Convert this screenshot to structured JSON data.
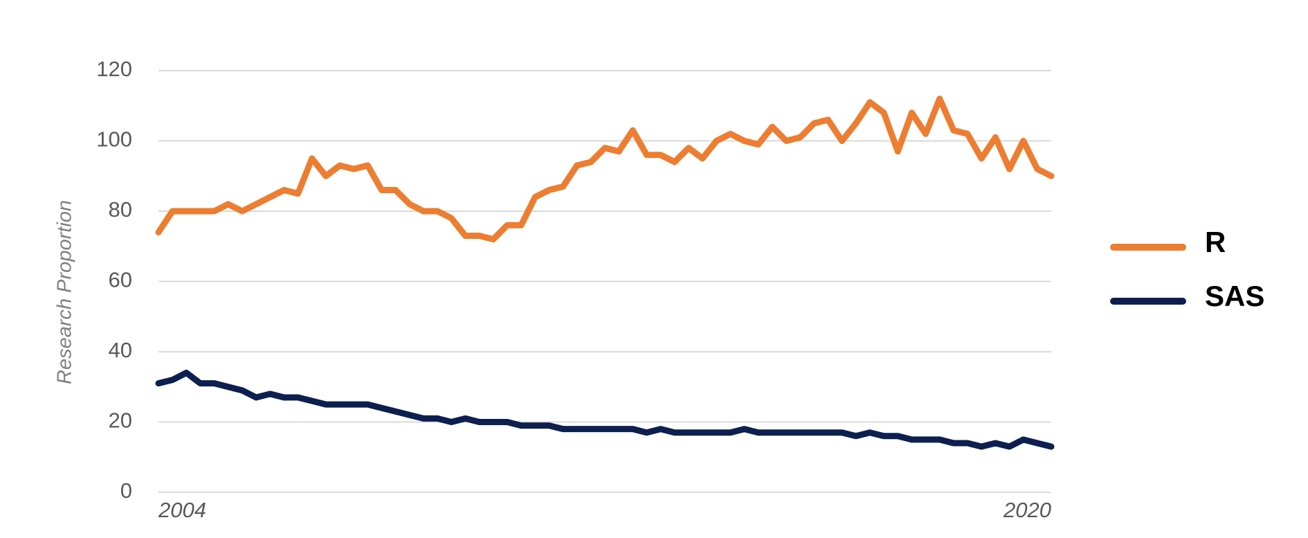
{
  "chart_data": {
    "type": "line",
    "y_label": "Research Proportion",
    "x": [
      2004,
      2004.25,
      2004.5,
      2004.75,
      2005,
      2005.25,
      2005.5,
      2005.75,
      2006,
      2006.25,
      2006.5,
      2006.75,
      2007,
      2007.25,
      2007.5,
      2007.75,
      2008,
      2008.25,
      2008.5,
      2008.75,
      2009,
      2009.25,
      2009.5,
      2009.75,
      2010,
      2010.25,
      2010.5,
      2010.75,
      2011,
      2011.25,
      2011.5,
      2011.75,
      2012,
      2012.25,
      2012.5,
      2012.75,
      2013,
      2013.25,
      2013.5,
      2013.75,
      2014,
      2014.25,
      2014.5,
      2014.75,
      2015,
      2015.25,
      2015.5,
      2015.75,
      2016,
      2016.25,
      2016.5,
      2016.75,
      2017,
      2017.25,
      2017.5,
      2017.75,
      2018,
      2018.25,
      2018.5,
      2018.75,
      2019,
      2019.25,
      2019.5,
      2019.75,
      2020
    ],
    "xlim": [
      2004,
      2020
    ],
    "xticks": [
      2004,
      2020
    ],
    "ylim": [
      0,
      120
    ],
    "yticks": [
      0,
      20,
      40,
      60,
      80,
      100,
      120
    ],
    "grid": true,
    "legend": "right",
    "series": [
      {
        "name": "R",
        "color": "#ed7d31",
        "values": [
          74,
          80,
          80,
          80,
          80,
          82,
          80,
          82,
          84,
          86,
          85,
          95,
          90,
          93,
          92,
          93,
          86,
          86,
          82,
          80,
          80,
          78,
          73,
          73,
          72,
          76,
          76,
          84,
          86,
          87,
          93,
          94,
          98,
          97,
          103,
          96,
          96,
          94,
          98,
          95,
          100,
          102,
          100,
          99,
          104,
          100,
          101,
          105,
          106,
          100,
          105,
          111,
          108,
          97,
          108,
          102,
          112,
          103,
          102,
          95,
          101,
          92,
          100,
          92,
          90
        ]
      },
      {
        "name": "SAS",
        "color": "#0d1f4f",
        "values": [
          31,
          32,
          34,
          31,
          31,
          30,
          29,
          27,
          28,
          27,
          27,
          26,
          25,
          25,
          25,
          25,
          24,
          23,
          22,
          21,
          21,
          20,
          21,
          20,
          20,
          20,
          19,
          19,
          19,
          18,
          18,
          18,
          18,
          18,
          18,
          17,
          18,
          17,
          17,
          17,
          17,
          17,
          18,
          17,
          17,
          17,
          17,
          17,
          17,
          17,
          16,
          17,
          16,
          16,
          15,
          15,
          15,
          14,
          14,
          13,
          14,
          13,
          15,
          14,
          13
        ]
      }
    ]
  }
}
